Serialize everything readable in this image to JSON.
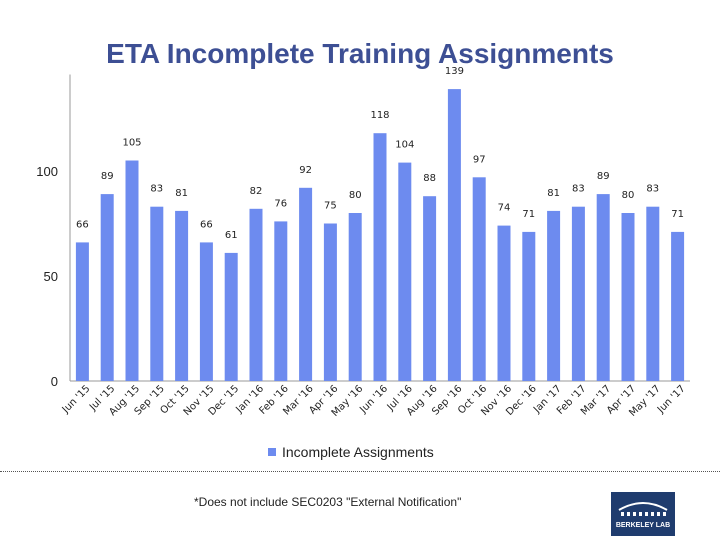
{
  "chart_data": {
    "type": "bar",
    "title": "ETA Incomplete Training Assignments",
    "categories": [
      "Jun '15",
      "Jul '15",
      "Aug '15",
      "Sep '15",
      "Oct '15",
      "Nov '15",
      "Dec '15",
      "Jan '16",
      "Feb '16",
      "Mar '16",
      "Apr '16",
      "May '16",
      "Jun '16",
      "Jul '16",
      "Aug '16",
      "Sep '16",
      "Oct '16",
      "Nov '16",
      "Dec '16",
      "Jan '17",
      "Feb '17",
      "Mar '17",
      "Apr '17",
      "May '17",
      "Jun '17"
    ],
    "series": [
      {
        "name": "Incomplete Assignments",
        "values": [
          66,
          89,
          105,
          83,
          81,
          66,
          61,
          82,
          76,
          92,
          75,
          80,
          118,
          104,
          88,
          139,
          97,
          74,
          71,
          81,
          83,
          89,
          80,
          83,
          71
        ]
      }
    ],
    "yticks": [
      0,
      50,
      100
    ],
    "ylim": [
      0,
      145
    ],
    "bar_color": "#6d8bef",
    "legend_position": "bottom"
  },
  "footnote": "*Does not include SEC0203 \"External Notification\"",
  "logo_text": "BERKELEY LAB"
}
